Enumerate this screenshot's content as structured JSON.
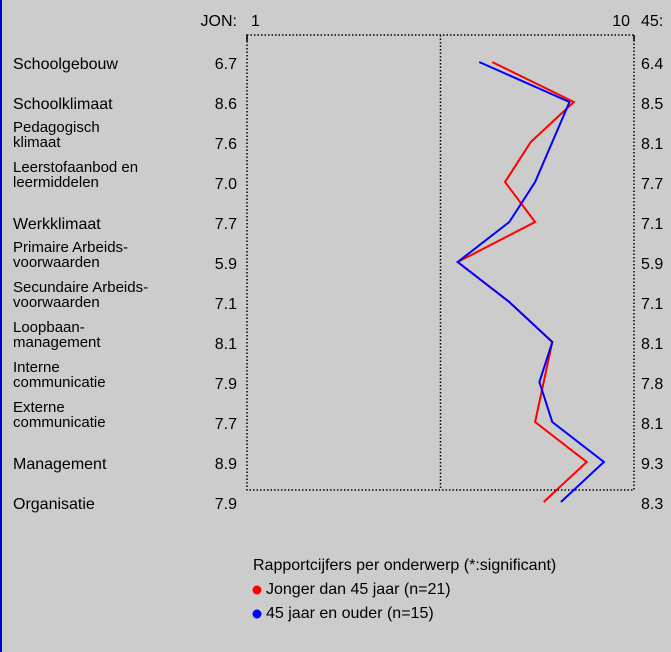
{
  "chart_data": {
    "type": "line",
    "orientation": "horizontal",
    "categories": [
      [
        "Schoolgebouw"
      ],
      [
        "Schoolklimaat"
      ],
      [
        "Pedagogisch",
        "klimaat"
      ],
      [
        "Leerstofaanbod en",
        "leermiddelen"
      ],
      [
        "Werkklimaat"
      ],
      [
        "Primaire Arbeids-",
        "voorwaarden"
      ],
      [
        "Secundaire Arbeids-",
        "voorwaarden"
      ],
      [
        "Loopbaan-",
        "management"
      ],
      [
        "Interne",
        "communicatie"
      ],
      [
        "Externe",
        "communicatie"
      ],
      [
        "Management"
      ],
      [
        "Organisatie"
      ]
    ],
    "series": [
      {
        "name": "Jonger dan 45 jaar (n=21)",
        "column_label": "JON:",
        "color": "#ff0000",
        "values": [
          6.7,
          8.6,
          7.6,
          7.0,
          7.7,
          5.9,
          7.1,
          8.1,
          7.9,
          7.7,
          8.9,
          7.9
        ],
        "value_labels": [
          "6.7",
          "8.6",
          "7.6",
          "7.0",
          "7.7",
          "5.9",
          "7.1",
          "8.1",
          "7.9",
          "7.7",
          "8.9",
          "7.9"
        ]
      },
      {
        "name": "45 jaar en ouder (n=15)",
        "column_label": "45:",
        "color": "#0000ff",
        "values": [
          6.4,
          8.5,
          8.1,
          7.7,
          7.1,
          5.9,
          7.1,
          8.1,
          7.8,
          8.1,
          9.3,
          8.3
        ],
        "value_labels": [
          "6.4",
          "8.5",
          "8.1",
          "7.7",
          "7.1",
          "5.9",
          "7.1",
          "8.1",
          "7.8",
          "8.1",
          "9.3",
          "8.3"
        ]
      }
    ],
    "xlim": [
      1,
      10
    ],
    "xticks": [
      1,
      10
    ],
    "reference_line": 5.5,
    "legend_title": "Rapportcijfers per onderwerp (*:significant)"
  }
}
